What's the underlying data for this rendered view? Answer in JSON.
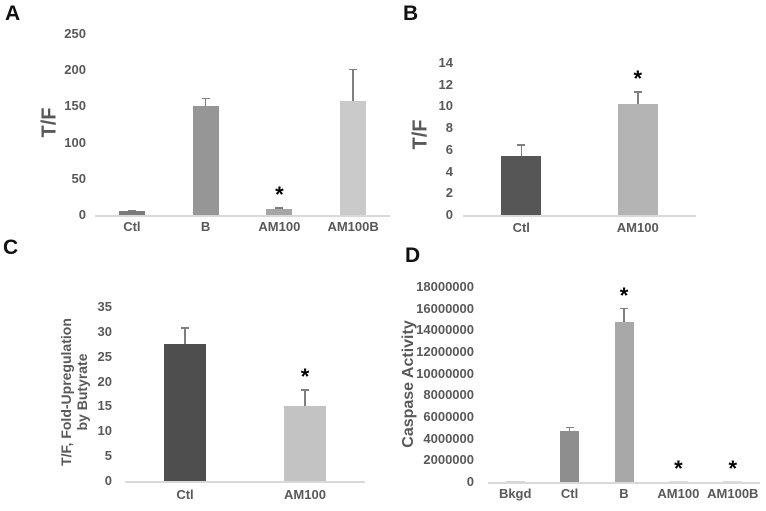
{
  "figure_type": "four-panel-bar-figure",
  "chart_data": [
    {
      "type": "bar",
      "panel": "A",
      "ylabel": "T/F",
      "categories": [
        "Ctl",
        "B",
        "AM100",
        "AM100B"
      ],
      "values": [
        5,
        150,
        8,
        157
      ],
      "errors": [
        2,
        12,
        3,
        45
      ],
      "sig": [
        false,
        false,
        true,
        false
      ],
      "sig_symbol": "*",
      "bar_colors": [
        "#7a7a7a",
        "#969696",
        "#a6a6a6",
        "#cacaca"
      ],
      "ylim": [
        0,
        250
      ],
      "ytick_step": 50,
      "grid": false,
      "legend": "none"
    },
    {
      "type": "bar",
      "panel": "B",
      "ylabel": "T/F",
      "categories": [
        "Ctl",
        "AM100"
      ],
      "values": [
        5.4,
        10.2
      ],
      "errors": [
        1.1,
        1.2
      ],
      "sig": [
        false,
        true
      ],
      "sig_symbol": "*",
      "bar_colors": [
        "#565656",
        "#b4b4b4"
      ],
      "ylim": [
        0,
        14
      ],
      "ytick_step": 2,
      "grid": false,
      "legend": "none"
    },
    {
      "type": "bar",
      "panel": "C",
      "ylabel": "T/F, Fold-Upregulation by Butyrate",
      "ylabel_lines": [
        "T/F, Fold-Upregulation",
        "by Butyrate"
      ],
      "categories": [
        "Ctl",
        "AM100"
      ],
      "values": [
        27.5,
        15.1
      ],
      "errors": [
        3.4,
        3.4
      ],
      "sig": [
        false,
        true
      ],
      "sig_symbol": "*",
      "bar_colors": [
        "#4e4e4e",
        "#c3c3c3"
      ],
      "ylim": [
        0,
        35
      ],
      "ytick_step": 5,
      "grid": false,
      "legend": "none"
    },
    {
      "type": "bar",
      "panel": "D",
      "ylabel": "Caspase Activity",
      "categories": [
        "Bkgd",
        "Ctl",
        "B",
        "AM100",
        "AM100B"
      ],
      "values": [
        120000,
        4700000,
        14800000,
        60000,
        60000
      ],
      "errors": [
        0,
        400000,
        1300000,
        0,
        0
      ],
      "sig": [
        false,
        false,
        true,
        true,
        true
      ],
      "sig_symbol": "*",
      "bar_colors": [
        "#d4d4d4",
        "#8e8e8e",
        "#a8a8a8",
        "#dcdcdc",
        "#dcdcdc"
      ],
      "ylim": [
        0,
        18000000
      ],
      "ytick_step": 2000000,
      "grid": false,
      "legend": "none"
    }
  ],
  "colors": {
    "axis_text": "#595959",
    "baseline": "#d9d9d9",
    "error_bar": "#7f7f7f",
    "panel_letter": "#111111",
    "background": "#ffffff"
  }
}
